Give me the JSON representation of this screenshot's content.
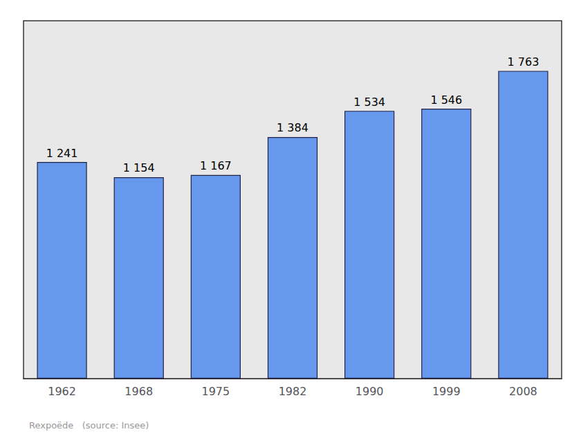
{
  "chart_data": {
    "type": "bar",
    "categories": [
      "1962",
      "1968",
      "1975",
      "1982",
      "1990",
      "1999",
      "2008"
    ],
    "values": [
      1241,
      1154,
      1167,
      1384,
      1534,
      1546,
      1763
    ],
    "value_labels": [
      "1 241",
      "1 154",
      "1 167",
      "1 384",
      "1 534",
      "1 546",
      "1 763"
    ],
    "data_labels": true,
    "color": "#6699ee",
    "ylim": [
      0,
      2050
    ],
    "tick_labels": "x",
    "grid": false,
    "annotations": [
      "Rexpoëde   (source: Insee)"
    ]
  }
}
